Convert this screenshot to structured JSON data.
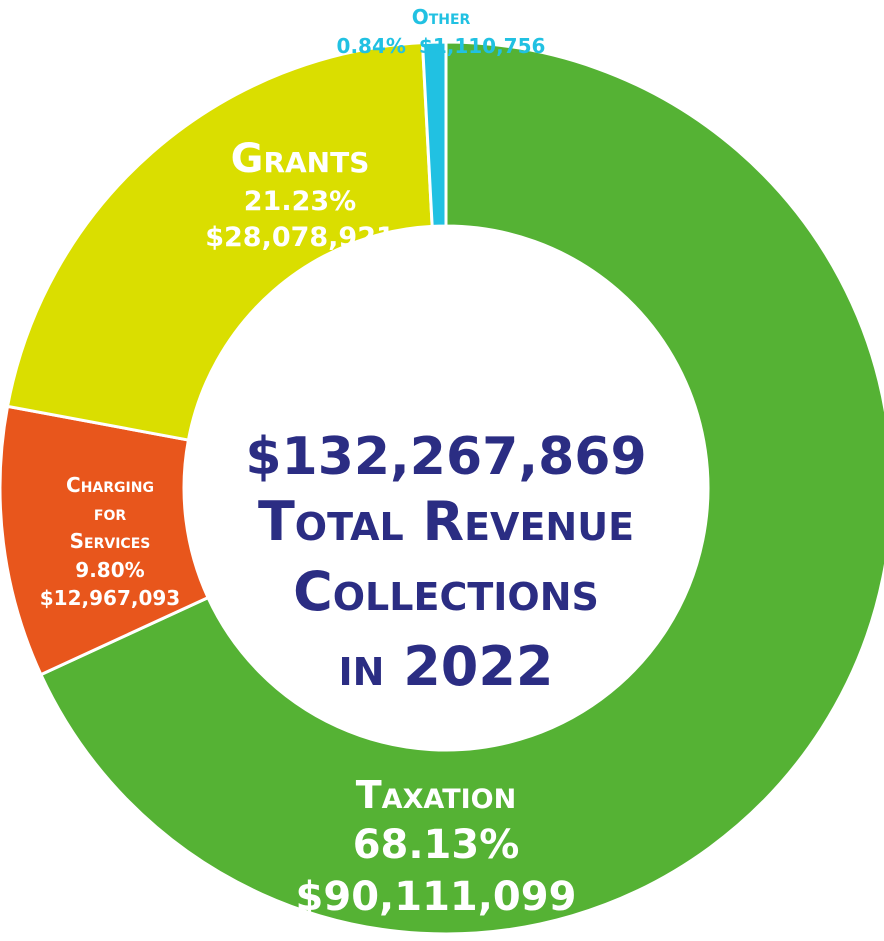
{
  "chart_data": {
    "type": "pie",
    "donut": true,
    "center": {
      "amount": "$132,267,869",
      "line1": "Total Revenue",
      "line2": "Collections",
      "line3": "in 2022"
    },
    "slices": [
      {
        "name": "Taxation",
        "percent": 68.13,
        "percent_label": "68.13%",
        "amount": "$90,111,099",
        "color": "#55b234"
      },
      {
        "name": "Charging for Services",
        "name_lines": [
          "Charging",
          "for",
          "Services"
        ],
        "percent": 9.8,
        "percent_label": "9.80%",
        "amount": "$12,967,093",
        "color": "#e8561c"
      },
      {
        "name": "Grants",
        "percent": 21.23,
        "percent_label": "21.23%",
        "amount": "$28,078,921",
        "color": "#dade00"
      },
      {
        "name": "Other",
        "percent": 0.84,
        "percent_label": "0.84%",
        "amount": "$1,110,756",
        "color": "#21c1e2"
      }
    ],
    "colors": {
      "center_text": "#2b2d83",
      "slice_label": "#ffffff",
      "other_label": "#21c1e2"
    }
  }
}
